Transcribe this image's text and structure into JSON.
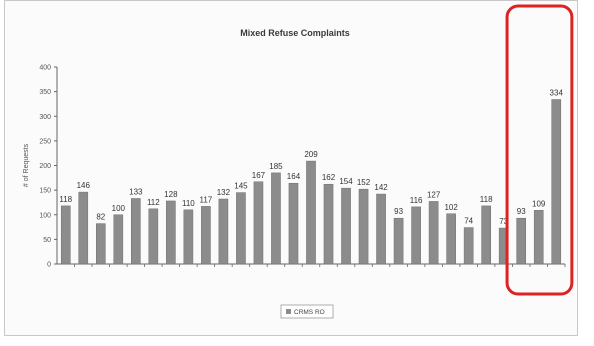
{
  "chart_data": {
    "type": "bar",
    "title": "Mixed Refuse Complaints",
    "ylabel": "# of Requests",
    "xlabel": "",
    "ylim": [
      0,
      400
    ],
    "yticks": [
      0,
      50,
      100,
      150,
      200,
      250,
      300,
      350,
      400
    ],
    "grid": false,
    "legend_position": "bottom-center",
    "categories": [
      "",
      "",
      "",
      "",
      "",
      "",
      "",
      "",
      "",
      "",
      "",
      "",
      "",
      "",
      "",
      "",
      "",
      "",
      "",
      "",
      "",
      "",
      "",
      "",
      "",
      "",
      "",
      "",
      ""
    ],
    "series": [
      {
        "name": "CRMS RO",
        "color": "#8c8c8c",
        "values": [
          118,
          146,
          82,
          100,
          133,
          112,
          128,
          110,
          117,
          132,
          145,
          167,
          185,
          164,
          209,
          162,
          154,
          152,
          142,
          93,
          116,
          127,
          102,
          74,
          118,
          73,
          93,
          109,
          334
        ],
        "labels": [
          "118",
          "146",
          "82",
          "100",
          "133",
          "112",
          "128",
          "110",
          "117",
          "132",
          "145",
          "167",
          "185",
          "164",
          "209",
          "162",
          "154",
          "152",
          "142",
          "93",
          "116",
          "127",
          "102",
          "74",
          "118",
          "73",
          "93",
          "109",
          "334"
        ]
      }
    ],
    "highlight": {
      "color": "#dd2222",
      "first_category_index": 26,
      "last_category_index": 28
    }
  }
}
